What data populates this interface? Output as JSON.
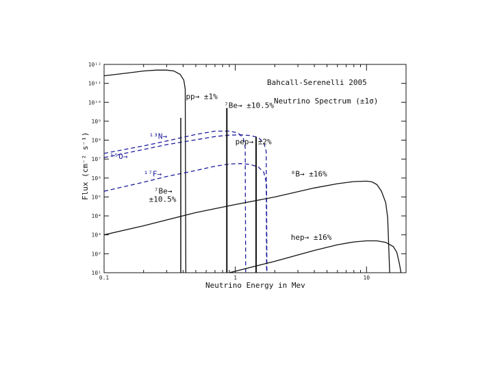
{
  "chart_data": {
    "type": "line",
    "title": "Bahcall-Serenelli 2005",
    "subtitle": "Neutrino Spectrum (±1σ)",
    "xlabel": "Neutrino Energy in Mev",
    "ylabel": "Flux (cm⁻² s⁻¹)",
    "xscale": "log",
    "yscale": "log",
    "xlim": [
      0.1,
      20
    ],
    "ylim": [
      10.0,
      1000000000000.0
    ],
    "x_ticks": [
      {
        "value": 0.1,
        "label": "0.1"
      },
      {
        "value": 1,
        "label": "1"
      },
      {
        "value": 10,
        "label": "10"
      }
    ],
    "y_ticks": [
      {
        "value": 10.0,
        "label": "10¹"
      },
      {
        "value": 100.0,
        "label": "10²"
      },
      {
        "value": 1000.0,
        "label": "10³"
      },
      {
        "value": 10000.0,
        "label": "10⁴"
      },
      {
        "value": 100000.0,
        "label": "10⁵"
      },
      {
        "value": 1000000.0,
        "label": "10⁶"
      },
      {
        "value": 10000000.0,
        "label": "10⁷"
      },
      {
        "value": 100000000.0,
        "label": "10⁸"
      },
      {
        "value": 1000000000.0,
        "label": "10⁹"
      },
      {
        "value": 10000000000.0,
        "label": "10¹⁰"
      },
      {
        "value": 100000000000.0,
        "label": "10¹¹"
      },
      {
        "value": 1000000000000.0,
        "label": "10¹²"
      }
    ],
    "grid": false,
    "colors": {
      "black": "#111111",
      "blue": "#1a1a9a"
    },
    "series": [
      {
        "name": "pp",
        "color": "#111111",
        "dash": false,
        "x": [
          0.1,
          0.15,
          0.2,
          0.25,
          0.3,
          0.34,
          0.38,
          0.405,
          0.415,
          0.42
        ],
        "y": [
          250000000000.0,
          350000000000.0,
          450000000000.0,
          500000000000.0,
          500000000000.0,
          450000000000.0,
          300000000000.0,
          150000000000.0,
          50000000000.0,
          10.0
        ]
      },
      {
        "name": "13N",
        "color": "#1a1a9a",
        "dash": true,
        "x": [
          0.1,
          0.2,
          0.3,
          0.5,
          0.7,
          0.9,
          1.05,
          1.15,
          1.19,
          1.2
        ],
        "y": [
          20000000.0,
          50000000.0,
          90000000.0,
          200000000.0,
          300000000.0,
          300000000.0,
          240000000.0,
          130000000.0,
          40000000.0,
          10.0
        ]
      },
      {
        "name": "15O",
        "color": "#1a1a9a",
        "dash": true,
        "x": [
          0.1,
          0.2,
          0.3,
          0.5,
          0.7,
          0.9,
          1.1,
          1.3,
          1.5,
          1.65,
          1.72,
          1.73
        ],
        "y": [
          12000000.0,
          32000000.0,
          58000000.0,
          105000000.0,
          155000000.0,
          185000000.0,
          190000000.0,
          175000000.0,
          135000000.0,
          75000000.0,
          25000000.0,
          10.0
        ]
      },
      {
        "name": "17F",
        "color": "#1a1a9a",
        "dash": true,
        "x": [
          0.1,
          0.2,
          0.3,
          0.5,
          0.7,
          0.9,
          1.1,
          1.3,
          1.5,
          1.65,
          1.73,
          1.74
        ],
        "y": [
          200000.0,
          600000.0,
          1200000.0,
          2500000.0,
          4200000.0,
          5500000.0,
          5800000.0,
          5200000.0,
          3800000.0,
          2000000.0,
          500000.0,
          10.0
        ]
      },
      {
        "name": "8B",
        "color": "#111111",
        "dash": false,
        "x": [
          0.1,
          0.2,
          0.5,
          1,
          2,
          4,
          6,
          8,
          10,
          11,
          12,
          13,
          14,
          14.5,
          15
        ],
        "y": [
          1000.0,
          3000.0,
          15000.0,
          40000.0,
          100000.0,
          300000.0,
          500000.0,
          650000.0,
          680000.0,
          630000.0,
          450000.0,
          200000.0,
          50000.0,
          8000.0,
          10.0
        ]
      },
      {
        "name": "hep",
        "color": "#111111",
        "dash": false,
        "x": [
          0.9,
          2,
          4,
          6,
          8,
          10,
          12,
          14,
          16,
          17,
          17.8,
          18.3
        ],
        "y": [
          10.0,
          40.0,
          150.0,
          300.0,
          420.0,
          480.0,
          480.0,
          400.0,
          240.0,
          120.0,
          30.0,
          10.0
        ]
      }
    ],
    "lines": [
      {
        "name": "7Be 0.384",
        "x": 0.384,
        "y": 1500000000.0,
        "color": "#111111",
        "dash": false,
        "width": 1.5
      },
      {
        "name": "7Be 0.862",
        "x": 0.862,
        "y": 5000000000.0,
        "color": "#111111",
        "dash": false,
        "width": 2
      },
      {
        "name": "pep",
        "x": 1.44,
        "y": 150000000.0,
        "color": "#111111",
        "dash": false,
        "width": 2
      }
    ],
    "annotations": [
      {
        "text": "pp→ ±1%",
        "x": 0.42,
        "y": 15000000000.0,
        "color": "#111111",
        "style": "anno"
      },
      {
        "text": "⁷Be→ ±10.5%",
        "x": 0.82,
        "y": 5000000000.0,
        "color": "#111111",
        "style": "anno"
      },
      {
        "text": "¹³N→",
        "x": 0.22,
        "y": 120000000.0,
        "color": "#1a1a9a",
        "style": "anno-blue"
      },
      {
        "text": "¹⁵O→",
        "x": 0.11,
        "y": 10000000.0,
        "color": "#1a1a9a",
        "style": "anno-blue"
      },
      {
        "text": "pep→ ±2%",
        "x": 1.0,
        "y": 60000000.0,
        "color": "#111111",
        "style": "anno"
      },
      {
        "text": "¹⁷F→",
        "x": 0.2,
        "y": 1200000.0,
        "color": "#1a1a9a",
        "style": "anno-blue"
      },
      {
        "text": "⁷Be→",
        "x": 0.24,
        "y": 150000.0,
        "color": "#111111",
        "style": "anno"
      },
      {
        "text": "±10.5%",
        "x": 0.22,
        "y": 55000.0,
        "color": "#111111",
        "style": "anno"
      },
      {
        "text": "⁸B→ ±16%",
        "x": 2.65,
        "y": 1200000.0,
        "color": "#111111",
        "style": "anno"
      },
      {
        "text": "hep→ ±16%",
        "x": 2.65,
        "y": 550.0,
        "color": "#111111",
        "style": "anno"
      }
    ]
  }
}
